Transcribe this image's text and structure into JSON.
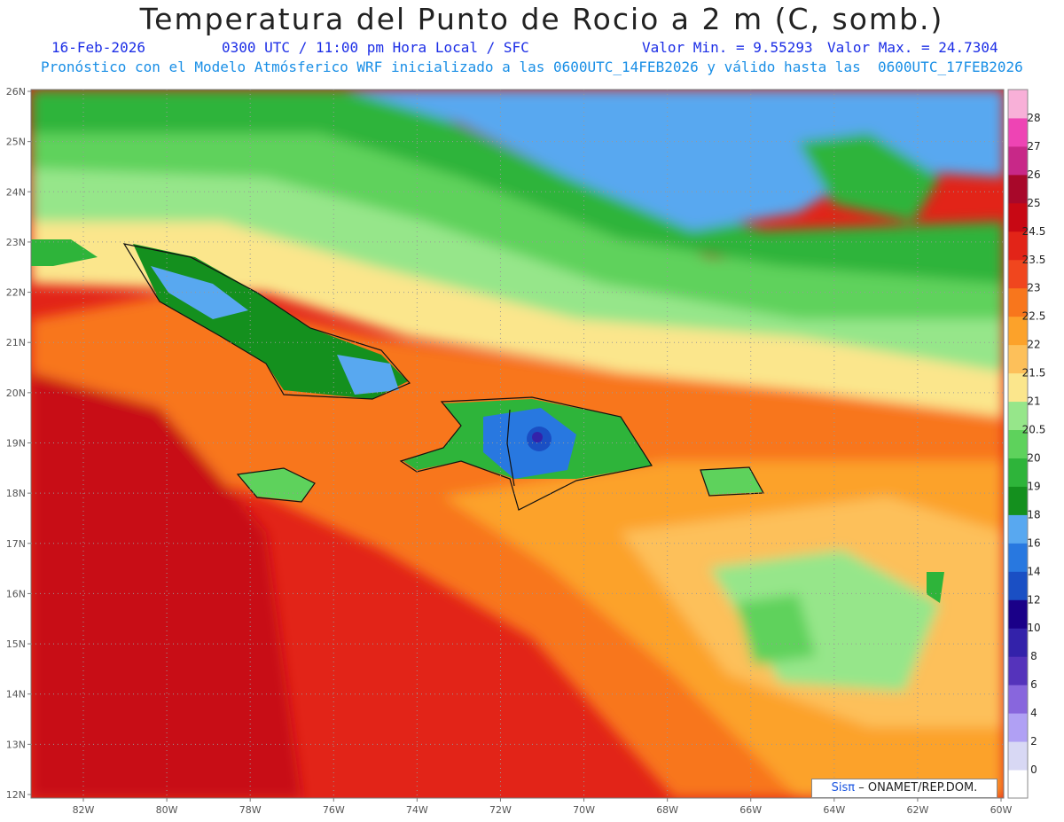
{
  "header": {
    "title": "Temperatura del Punto de Rocio a 2 m (C, somb.)",
    "date": "16-Feb-2026",
    "time": "0300 UTC / 11:00 pm Hora Local / SFC",
    "valor_min": "Valor Min. = 9.55293",
    "valor_max": "Valor Max. = 24.7304",
    "model_line": "Pronóstico con el Modelo Atmósferico WRF inicializado a las 0600UTC_14FEB2026 y válido hasta las  0600UTC_17FEB2026"
  },
  "map": {
    "lat_labels": [
      "26N",
      "25N",
      "24N",
      "23N",
      "22N",
      "21N",
      "20N",
      "19N",
      "18N",
      "17N",
      "16N",
      "15N",
      "14N",
      "13N",
      "12N"
    ],
    "lon_labels": [
      "82W",
      "80W",
      "78W",
      "76W",
      "74W",
      "72W",
      "70W",
      "68W",
      "66W",
      "64W",
      "62W",
      "60W"
    ]
  },
  "colorbar": {
    "levels": [
      "0",
      "2",
      "4",
      "6",
      "8",
      "10",
      "12",
      "14",
      "16",
      "18",
      "19",
      "20",
      "20.5",
      "21",
      "21.5",
      "22",
      "22.5",
      "23",
      "23.5",
      "24.5",
      "25",
      "26",
      "27",
      "28"
    ],
    "colors": [
      "#ffffff",
      "#d8d8f4",
      "#b0a0f4",
      "#8866dd",
      "#5533bb",
      "#3322aa",
      "#1a0088",
      "#1a4fc4",
      "#2878e0",
      "#58a8f0",
      "#14901e",
      "#2eb43a",
      "#5ed25c",
      "#96e68a",
      "#fbe68c",
      "#fdc05a",
      "#fca22a",
      "#f8761c",
      "#f0461e",
      "#e22418",
      "#c80814",
      "#a8082a",
      "#c82888",
      "#ee44b4",
      "#f8b0d8"
    ]
  },
  "credit": {
    "brand": "Sisπ",
    "text": "– ONAMET/REP.DOM."
  }
}
